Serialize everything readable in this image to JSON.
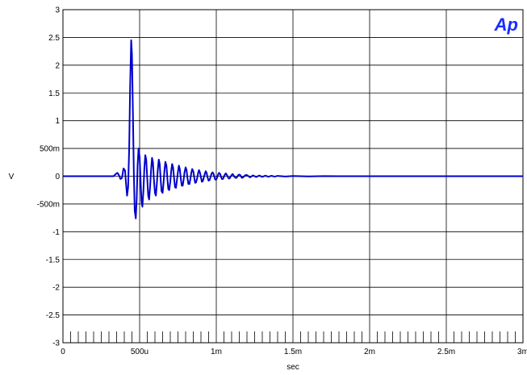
{
  "chart_data": {
    "type": "line",
    "title": "",
    "xlabel": "sec",
    "ylabel": "V",
    "xlim": [
      0,
      0.003
    ],
    "ylim": [
      -3,
      3
    ],
    "x_ticks": [
      {
        "value": 0,
        "label": "0"
      },
      {
        "value": 0.0005,
        "label": "500u"
      },
      {
        "value": 0.001,
        "label": "1m"
      },
      {
        "value": 0.0015,
        "label": "1.5m"
      },
      {
        "value": 0.002,
        "label": "2m"
      },
      {
        "value": 0.0025,
        "label": "2.5m"
      },
      {
        "value": 0.003,
        "label": "3m"
      }
    ],
    "y_ticks": [
      {
        "value": 3,
        "label": "3"
      },
      {
        "value": 2.5,
        "label": "2.5"
      },
      {
        "value": 2,
        "label": "2"
      },
      {
        "value": 1.5,
        "label": "1.5"
      },
      {
        "value": 1,
        "label": "1"
      },
      {
        "value": 0.5,
        "label": "500m"
      },
      {
        "value": 0,
        "label": "0"
      },
      {
        "value": -0.5,
        "label": "-500m"
      },
      {
        "value": -1,
        "label": "-1"
      },
      {
        "value": -1.5,
        "label": "-1.5"
      },
      {
        "value": -2,
        "label": "-2"
      },
      {
        "value": -2.5,
        "label": "-2.5"
      },
      {
        "value": -3,
        "label": "-3"
      }
    ],
    "grid": true,
    "series": [
      {
        "color": "#0000cc",
        "points": [
          [
            0,
            0
          ],
          [
            0.00033,
            0
          ],
          [
            0.000345,
            0.04
          ],
          [
            0.000355,
            0.06
          ],
          [
            0.000365,
            0.02
          ],
          [
            0.000375,
            -0.05
          ],
          [
            0.000385,
            -0.03
          ],
          [
            0.000395,
            0.14
          ],
          [
            0.000405,
            0.1
          ],
          [
            0.000412,
            -0.15
          ],
          [
            0.000418,
            -0.35
          ],
          [
            0.000425,
            -0.2
          ],
          [
            0.000432,
            0.5
          ],
          [
            0.000438,
            1.6
          ],
          [
            0.000445,
            2.45
          ],
          [
            0.00045,
            2.2
          ],
          [
            0.000456,
            1.2
          ],
          [
            0.000462,
            0.1
          ],
          [
            0.000468,
            -0.62
          ],
          [
            0.000475,
            -0.76
          ],
          [
            0.000481,
            -0.4
          ],
          [
            0.000487,
            0.2
          ],
          [
            0.000493,
            0.5
          ],
          [
            0.0005,
            0.35
          ],
          [
            0.000506,
            -0.05
          ],
          [
            0.000512,
            -0.45
          ],
          [
            0.000518,
            -0.55
          ],
          [
            0.000525,
            -0.25
          ],
          [
            0.000531,
            0.15
          ],
          [
            0.000537,
            0.38
          ],
          [
            0.000543,
            0.3
          ],
          [
            0.00055,
            -0.05
          ],
          [
            0.000556,
            -0.35
          ],
          [
            0.000562,
            -0.42
          ],
          [
            0.000568,
            -0.2
          ],
          [
            0.000575,
            0.12
          ],
          [
            0.000581,
            0.33
          ],
          [
            0.000587,
            0.25
          ],
          [
            0.000593,
            -0.05
          ],
          [
            0.0006,
            -0.3
          ],
          [
            0.000606,
            -0.35
          ],
          [
            0.000612,
            -0.15
          ],
          [
            0.000618,
            0.1
          ],
          [
            0.000625,
            0.3
          ],
          [
            0.000631,
            0.22
          ],
          [
            0.000637,
            -0.05
          ],
          [
            0.000643,
            -0.27
          ],
          [
            0.00065,
            -0.3
          ],
          [
            0.000656,
            -0.12
          ],
          [
            0.000662,
            0.1
          ],
          [
            0.000668,
            0.26
          ],
          [
            0.000675,
            0.19
          ],
          [
            0.000681,
            -0.04
          ],
          [
            0.000687,
            -0.23
          ],
          [
            0.000693,
            -0.25
          ],
          [
            0.0007,
            -0.1
          ],
          [
            0.000706,
            0.09
          ],
          [
            0.000712,
            0.22
          ],
          [
            0.000718,
            0.16
          ],
          [
            0.000725,
            -0.04
          ],
          [
            0.000731,
            -0.2
          ],
          [
            0.000737,
            -0.21
          ],
          [
            0.000743,
            -0.08
          ],
          [
            0.00075,
            0.08
          ],
          [
            0.000756,
            0.19
          ],
          [
            0.000762,
            0.13
          ],
          [
            0.000768,
            -0.03
          ],
          [
            0.000775,
            -0.17
          ],
          [
            0.000781,
            -0.17
          ],
          [
            0.000787,
            -0.06
          ],
          [
            0.000793,
            0.07
          ],
          [
            0.0008,
            0.16
          ],
          [
            0.000806,
            0.11
          ],
          [
            0.000812,
            -0.03
          ],
          [
            0.000818,
            -0.14
          ],
          [
            0.000825,
            -0.14
          ],
          [
            0.000831,
            -0.05
          ],
          [
            0.000837,
            0.06
          ],
          [
            0.000843,
            0.13
          ],
          [
            0.00085,
            0.09
          ],
          [
            0.000856,
            -0.02
          ],
          [
            0.000862,
            -0.12
          ],
          [
            0.000868,
            -0.11
          ],
          [
            0.000875,
            -0.04
          ],
          [
            0.000881,
            0.05
          ],
          [
            0.000887,
            0.11
          ],
          [
            0.000893,
            0.07
          ],
          [
            0.0009,
            -0.02
          ],
          [
            0.000906,
            -0.1
          ],
          [
            0.000912,
            -0.09
          ],
          [
            0.000918,
            -0.03
          ],
          [
            0.000925,
            0.04
          ],
          [
            0.000931,
            0.09
          ],
          [
            0.000937,
            0.06
          ],
          [
            0.000943,
            -0.02
          ],
          [
            0.00095,
            -0.08
          ],
          [
            0.000956,
            -0.07
          ],
          [
            0.000962,
            -0.02
          ],
          [
            0.000968,
            0.04
          ],
          [
            0.000975,
            0.07
          ],
          [
            0.000981,
            0.05
          ],
          [
            0.000987,
            -0.01
          ],
          [
            0.000993,
            -0.06
          ],
          [
            0.001,
            -0.06
          ],
          [
            0.001006,
            -0.02
          ],
          [
            0.001012,
            0.03
          ],
          [
            0.001018,
            0.06
          ],
          [
            0.001025,
            0.04
          ],
          [
            0.001031,
            -0.01
          ],
          [
            0.001037,
            -0.05
          ],
          [
            0.001043,
            -0.05
          ],
          [
            0.00105,
            -0.01
          ],
          [
            0.001056,
            0.03
          ],
          [
            0.001062,
            0.05
          ],
          [
            0.001068,
            0.03
          ],
          [
            0.001075,
            -0.01
          ],
          [
            0.001081,
            -0.04
          ],
          [
            0.001087,
            -0.04
          ],
          [
            0.001093,
            -0.01
          ],
          [
            0.0011,
            0.02
          ],
          [
            0.001106,
            0.04
          ],
          [
            0.001112,
            0.02
          ],
          [
            0.001118,
            -0.01
          ],
          [
            0.001125,
            -0.03
          ],
          [
            0.001131,
            -0.03
          ],
          [
            0.001137,
            -0.01
          ],
          [
            0.001143,
            0.02
          ],
          [
            0.00115,
            0.03
          ],
          [
            0.001156,
            0.02
          ],
          [
            0.001162,
            -0.01
          ],
          [
            0.001168,
            -0.03
          ],
          [
            0.001175,
            -0.02
          ],
          [
            0.00119,
            0.02
          ],
          [
            0.0012,
            0.02
          ],
          [
            0.00122,
            -0.02
          ],
          [
            0.00124,
            0.015
          ],
          [
            0.00126,
            -0.015
          ],
          [
            0.00128,
            0.012
          ],
          [
            0.0013,
            -0.012
          ],
          [
            0.00132,
            0.01
          ],
          [
            0.00134,
            -0.01
          ],
          [
            0.00136,
            0.008
          ],
          [
            0.00138,
            -0.008
          ],
          [
            0.0014,
            0.006
          ],
          [
            0.00145,
            -0.005
          ],
          [
            0.0015,
            0.004
          ],
          [
            0.0016,
            -0.003
          ],
          [
            0.0017,
            0.002
          ],
          [
            0.0018,
            0
          ],
          [
            0.002,
            0
          ],
          [
            0.0024,
            0
          ],
          [
            0.003,
            0
          ]
        ]
      }
    ]
  },
  "logo": "Ap"
}
